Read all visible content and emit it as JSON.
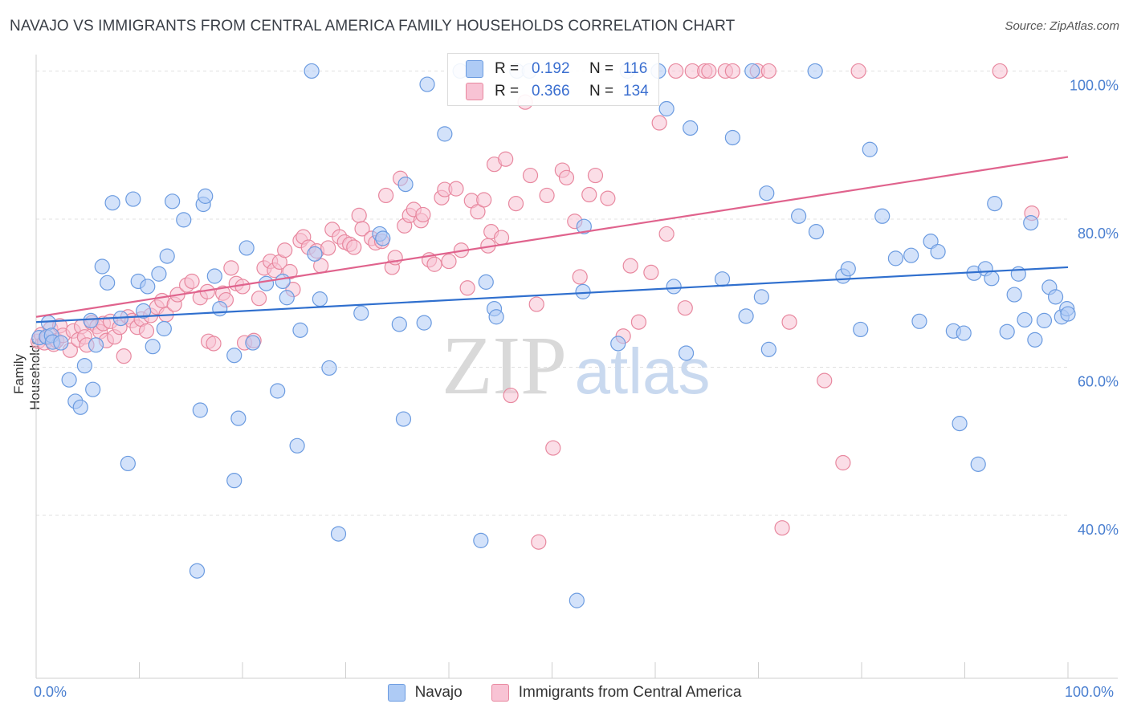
{
  "header": {
    "title": "NAVAJO VS IMMIGRANTS FROM CENTRAL AMERICA FAMILY HOUSEHOLDS CORRELATION CHART",
    "source": "Source: ZipAtlas.com"
  },
  "watermark": {
    "zip": "ZIP",
    "atlas": "atlas"
  },
  "legend_top": {
    "rows": [
      {
        "r_label": "R =",
        "r_value": "0.192",
        "n_label": "N =",
        "n_value": "116",
        "color": "#8fb6f0"
      },
      {
        "r_label": "R =",
        "r_value": "0.366",
        "n_label": "N =",
        "n_value": "134",
        "color": "#f4a8c0"
      }
    ]
  },
  "colors": {
    "navajo_fill": "#aecbf5",
    "navajo_stroke": "#6b9be0",
    "navajo_line": "#2f6fce",
    "central_fill": "#f8c3d4",
    "central_stroke": "#e8889f",
    "central_line": "#e0638d",
    "grid": "#e0e0e0",
    "axis_text": "#4a7fd0"
  },
  "chart_data": {
    "type": "scatter",
    "title": "NAVAJO VS IMMIGRANTS FROM CENTRAL AMERICA FAMILY HOUSEHOLDS CORRELATION CHART",
    "xlabel": "",
    "ylabel": "Family Households",
    "xlim": [
      0,
      100
    ],
    "ylim": [
      18,
      102
    ],
    "x_tick_labels": [
      "0.0%",
      "100.0%"
    ],
    "y_ticks": [
      40,
      60,
      80,
      100
    ],
    "y_tick_labels": [
      "40.0%",
      "60.0%",
      "80.0%",
      "100.0%"
    ],
    "grid": true,
    "legend_position": "top-center",
    "series": [
      {
        "name": "Navajo",
        "r": 0.192,
        "n": 116,
        "trend": {
          "x": [
            0,
            100
          ],
          "y": [
            66.1,
            73.5
          ]
        },
        "points": [
          [
            0.3,
            64.0
          ],
          [
            1.0,
            64.1
          ],
          [
            1.2,
            66.0
          ],
          [
            1.5,
            64.3
          ],
          [
            1.6,
            63.4
          ],
          [
            2.4,
            63.3
          ],
          [
            3.2,
            58.3
          ],
          [
            3.8,
            55.4
          ],
          [
            4.3,
            54.6
          ],
          [
            4.7,
            60.2
          ],
          [
            5.3,
            66.3
          ],
          [
            5.5,
            57.0
          ],
          [
            5.8,
            63.0
          ],
          [
            6.4,
            73.6
          ],
          [
            6.9,
            71.4
          ],
          [
            7.4,
            82.2
          ],
          [
            8.2,
            66.6
          ],
          [
            8.9,
            47.0
          ],
          [
            9.4,
            82.7
          ],
          [
            9.9,
            71.6
          ],
          [
            10.4,
            67.6
          ],
          [
            10.8,
            70.9
          ],
          [
            11.3,
            62.8
          ],
          [
            11.9,
            72.6
          ],
          [
            12.4,
            65.2
          ],
          [
            12.7,
            75.0
          ],
          [
            13.2,
            82.4
          ],
          [
            14.3,
            79.9
          ],
          [
            15.6,
            32.5
          ],
          [
            15.9,
            54.2
          ],
          [
            16.2,
            82.0
          ],
          [
            16.4,
            83.1
          ],
          [
            17.3,
            72.3
          ],
          [
            17.8,
            67.9
          ],
          [
            19.2,
            61.6
          ],
          [
            19.2,
            44.7
          ],
          [
            19.6,
            53.1
          ],
          [
            20.4,
            76.1
          ],
          [
            21.0,
            63.3
          ],
          [
            22.3,
            71.3
          ],
          [
            23.4,
            56.8
          ],
          [
            23.9,
            71.6
          ],
          [
            24.3,
            69.4
          ],
          [
            25.3,
            49.4
          ],
          [
            25.6,
            65.0
          ],
          [
            26.7,
            100.0
          ],
          [
            27.0,
            75.3
          ],
          [
            27.5,
            69.2
          ],
          [
            28.4,
            59.9
          ],
          [
            29.3,
            37.5
          ],
          [
            31.5,
            67.3
          ],
          [
            33.3,
            78.0
          ],
          [
            33.6,
            77.4
          ],
          [
            35.2,
            65.8
          ],
          [
            35.6,
            53.0
          ],
          [
            35.8,
            84.7
          ],
          [
            37.6,
            66.0
          ],
          [
            37.9,
            98.2
          ],
          [
            39.6,
            91.5
          ],
          [
            41.1,
            100.0
          ],
          [
            43.1,
            36.6
          ],
          [
            43.6,
            71.5
          ],
          [
            44.4,
            67.9
          ],
          [
            44.6,
            66.8
          ],
          [
            46.6,
            100.0
          ],
          [
            47.8,
            100.0
          ],
          [
            52.4,
            28.5
          ],
          [
            53.0,
            70.2
          ],
          [
            53.1,
            79.0
          ],
          [
            56.4,
            63.2
          ],
          [
            57.3,
            100.0
          ],
          [
            60.3,
            100.0
          ],
          [
            61.1,
            94.9
          ],
          [
            61.8,
            70.9
          ],
          [
            63.0,
            61.9
          ],
          [
            63.4,
            92.3
          ],
          [
            66.5,
            71.9
          ],
          [
            67.5,
            91.0
          ],
          [
            68.8,
            66.9
          ],
          [
            69.4,
            100.0
          ],
          [
            70.3,
            69.5
          ],
          [
            70.8,
            83.5
          ],
          [
            71.0,
            62.4
          ],
          [
            73.9,
            80.4
          ],
          [
            75.6,
            78.3
          ],
          [
            75.5,
            100.0
          ],
          [
            78.2,
            72.3
          ],
          [
            78.7,
            73.3
          ],
          [
            79.9,
            65.1
          ],
          [
            80.8,
            89.4
          ],
          [
            82.0,
            80.4
          ],
          [
            83.3,
            74.7
          ],
          [
            84.8,
            75.1
          ],
          [
            85.6,
            66.2
          ],
          [
            86.7,
            77.0
          ],
          [
            87.4,
            75.6
          ],
          [
            88.9,
            64.9
          ],
          [
            89.5,
            52.4
          ],
          [
            89.9,
            64.6
          ],
          [
            90.9,
            72.7
          ],
          [
            91.3,
            46.9
          ],
          [
            92.0,
            73.3
          ],
          [
            92.6,
            72.0
          ],
          [
            92.9,
            82.1
          ],
          [
            94.1,
            64.8
          ],
          [
            94.8,
            69.8
          ],
          [
            95.2,
            72.6
          ],
          [
            95.8,
            66.4
          ],
          [
            96.4,
            79.5
          ],
          [
            96.8,
            63.7
          ],
          [
            97.7,
            66.3
          ],
          [
            98.2,
            70.8
          ],
          [
            98.8,
            69.5
          ],
          [
            99.4,
            66.8
          ],
          [
            99.9,
            67.9
          ],
          [
            100.0,
            67.2
          ]
        ]
      },
      {
        "name": "Immigrants from Central America",
        "r": 0.366,
        "n": 134,
        "trend": {
          "x": [
            0,
            100
          ],
          "y": [
            66.8,
            88.4
          ]
        },
        "points": [
          [
            0.2,
            63.5
          ],
          [
            0.5,
            64.4
          ],
          [
            0.8,
            63.3
          ],
          [
            1.1,
            64.0
          ],
          [
            1.4,
            65.2
          ],
          [
            1.7,
            63.1
          ],
          [
            2.0,
            63.6
          ],
          [
            2.3,
            65.6
          ],
          [
            2.6,
            64.3
          ],
          [
            3.3,
            62.3
          ],
          [
            3.6,
            64.9
          ],
          [
            4.1,
            63.7
          ],
          [
            4.4,
            65.5
          ],
          [
            4.7,
            64.1
          ],
          [
            4.9,
            63.0
          ],
          [
            5.4,
            66.0
          ],
          [
            5.9,
            65.5
          ],
          [
            6.2,
            64.8
          ],
          [
            6.5,
            65.9
          ],
          [
            6.8,
            63.6
          ],
          [
            7.2,
            66.2
          ],
          [
            7.6,
            64.1
          ],
          [
            8.1,
            65.4
          ],
          [
            8.5,
            61.5
          ],
          [
            8.9,
            66.8
          ],
          [
            9.3,
            66.3
          ],
          [
            9.8,
            65.4
          ],
          [
            10.2,
            66.5
          ],
          [
            10.7,
            64.9
          ],
          [
            11.1,
            67.0
          ],
          [
            11.7,
            68.1
          ],
          [
            12.2,
            69.0
          ],
          [
            12.6,
            67.1
          ],
          [
            13.4,
            68.5
          ],
          [
            13.7,
            69.8
          ],
          [
            14.6,
            71.1
          ],
          [
            15.1,
            71.6
          ],
          [
            15.9,
            69.4
          ],
          [
            16.6,
            70.2
          ],
          [
            16.7,
            63.5
          ],
          [
            17.2,
            63.2
          ],
          [
            18.1,
            70.0
          ],
          [
            18.4,
            69.1
          ],
          [
            18.9,
            73.4
          ],
          [
            19.4,
            71.3
          ],
          [
            20.0,
            70.9
          ],
          [
            20.2,
            63.3
          ],
          [
            21.1,
            63.6
          ],
          [
            21.6,
            69.3
          ],
          [
            22.1,
            73.4
          ],
          [
            22.7,
            74.3
          ],
          [
            23.1,
            73.1
          ],
          [
            23.6,
            74.2
          ],
          [
            24.1,
            75.8
          ],
          [
            24.6,
            72.9
          ],
          [
            24.9,
            70.5
          ],
          [
            25.6,
            77.1
          ],
          [
            25.9,
            77.6
          ],
          [
            26.4,
            76.2
          ],
          [
            27.2,
            75.7
          ],
          [
            27.6,
            73.7
          ],
          [
            28.3,
            76.1
          ],
          [
            28.7,
            78.6
          ],
          [
            29.4,
            77.6
          ],
          [
            29.9,
            76.9
          ],
          [
            30.4,
            76.6
          ],
          [
            30.8,
            76.2
          ],
          [
            31.3,
            80.5
          ],
          [
            31.6,
            78.7
          ],
          [
            32.5,
            77.4
          ],
          [
            32.9,
            76.8
          ],
          [
            33.5,
            77.0
          ],
          [
            33.9,
            83.2
          ],
          [
            34.5,
            73.5
          ],
          [
            34.8,
            74.8
          ],
          [
            35.3,
            85.5
          ],
          [
            35.7,
            79.1
          ],
          [
            36.2,
            80.5
          ],
          [
            36.6,
            81.3
          ],
          [
            37.3,
            79.8
          ],
          [
            37.5,
            80.6
          ],
          [
            38.1,
            74.5
          ],
          [
            38.6,
            73.9
          ],
          [
            39.3,
            82.9
          ],
          [
            39.6,
            84.0
          ],
          [
            40.0,
            74.3
          ],
          [
            40.7,
            84.1
          ],
          [
            41.2,
            75.8
          ],
          [
            41.8,
            70.7
          ],
          [
            42.2,
            82.5
          ],
          [
            42.8,
            81.0
          ],
          [
            43.4,
            82.6
          ],
          [
            43.8,
            76.4
          ],
          [
            44.1,
            78.3
          ],
          [
            44.4,
            87.4
          ],
          [
            45.1,
            77.5
          ],
          [
            45.5,
            88.1
          ],
          [
            46.0,
            56.2
          ],
          [
            46.5,
            82.1
          ],
          [
            47.4,
            95.8
          ],
          [
            47.9,
            85.9
          ],
          [
            48.5,
            68.5
          ],
          [
            48.7,
            36.4
          ],
          [
            49.5,
            83.2
          ],
          [
            50.1,
            49.1
          ],
          [
            51.0,
            86.6
          ],
          [
            51.4,
            85.6
          ],
          [
            52.2,
            79.7
          ],
          [
            52.7,
            72.2
          ],
          [
            53.6,
            83.3
          ],
          [
            54.2,
            85.9
          ],
          [
            55.4,
            82.8
          ],
          [
            56.9,
            64.2
          ],
          [
            57.6,
            73.7
          ],
          [
            58.4,
            66.1
          ],
          [
            59.6,
            72.8
          ],
          [
            60.4,
            93.0
          ],
          [
            61.1,
            78.0
          ],
          [
            62.0,
            100.0
          ],
          [
            62.9,
            68.0
          ],
          [
            63.6,
            100.0
          ],
          [
            64.8,
            100.0
          ],
          [
            65.2,
            100.0
          ],
          [
            66.8,
            100.0
          ],
          [
            67.5,
            100.0
          ],
          [
            69.9,
            100.0
          ],
          [
            71.0,
            100.0
          ],
          [
            72.3,
            38.3
          ],
          [
            73.0,
            66.1
          ],
          [
            76.4,
            58.2
          ],
          [
            78.2,
            47.1
          ],
          [
            79.7,
            100.0
          ],
          [
            93.4,
            100.0
          ],
          [
            96.5,
            80.8
          ]
        ]
      }
    ]
  },
  "legend_bottom": {
    "items": [
      {
        "label": "Navajo"
      },
      {
        "label": "Immigrants from Central America"
      }
    ]
  }
}
